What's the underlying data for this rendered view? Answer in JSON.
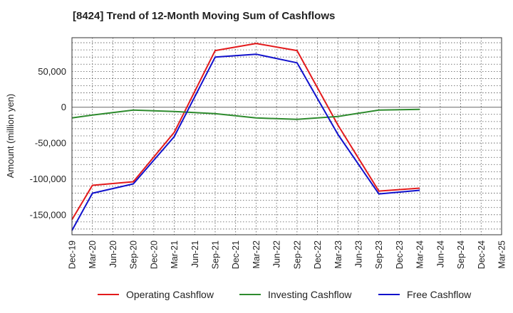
{
  "chart_data": {
    "type": "line",
    "title": "[8424]  Trend of 12-Month Moving Sum of Cashflows",
    "ylabel": "Amount (million yen)",
    "xlabel": "",
    "ylim": [
      -178000,
      97000
    ],
    "yticks": [
      50000,
      0,
      -50000,
      -100000,
      -150000
    ],
    "ytick_labels": [
      "50,000",
      "0",
      "-50,000",
      "-100,000",
      "-150,000"
    ],
    "categories": [
      "Dec-19",
      "Mar-20",
      "Jun-20",
      "Sep-20",
      "Dec-20",
      "Mar-21",
      "Jun-21",
      "Sep-21",
      "Dec-21",
      "Mar-22",
      "Jun-22",
      "Sep-22",
      "Dec-22",
      "Mar-23",
      "Jun-23",
      "Sep-23",
      "Dec-23",
      "Mar-24",
      "Jun-24",
      "Sep-24",
      "Dec-24",
      "Mar-25"
    ],
    "grid": true,
    "legend_position": "bottom",
    "series": [
      {
        "name": "Operating Cashflow",
        "color": "#e31a1c",
        "values": [
          -157000,
          -109000,
          null,
          -104000,
          null,
          -35000,
          null,
          79000,
          null,
          89000,
          null,
          79000,
          null,
          -25000,
          null,
          -117000,
          null,
          -113000,
          null,
          null,
          null,
          null
        ]
      },
      {
        "name": "Investing Cashflow",
        "color": "#2e8b2e",
        "values": [
          -15000,
          -11000,
          null,
          -4000,
          null,
          -6000,
          null,
          -9000,
          null,
          -15000,
          null,
          -17000,
          null,
          -13000,
          null,
          -4000,
          null,
          -3000,
          null,
          null,
          null,
          null
        ]
      },
      {
        "name": "Free Cashflow",
        "color": "#1111cc",
        "values": [
          -172000,
          -120000,
          null,
          -107000,
          null,
          -41000,
          null,
          70000,
          null,
          74000,
          null,
          62000,
          null,
          -38000,
          null,
          -121000,
          null,
          -116000,
          null,
          null,
          null,
          null
        ]
      }
    ]
  }
}
